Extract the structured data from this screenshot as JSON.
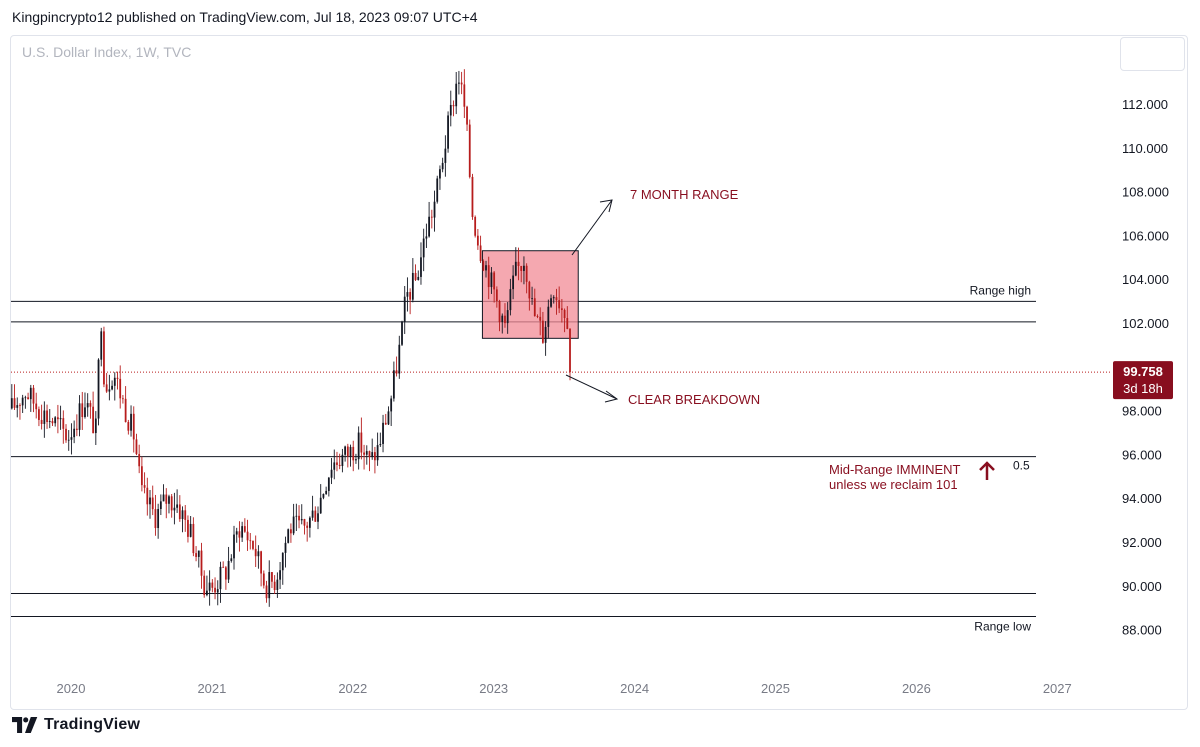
{
  "header": {
    "text": "Kingpincrypto12 published on TradingView.com, Jul 18, 2023 09:07 UTC+4"
  },
  "symbol": {
    "title": "U.S. Dollar Index, 1W, TVC"
  },
  "footer": {
    "brand": "TradingView",
    "logo_icon": "tradingview-logo-icon"
  },
  "colors": {
    "up": "#131722",
    "down": "#b71c1c",
    "range_box": "#f28b95",
    "last_price_bg": "#880e1f",
    "annotation": "#880e1f"
  },
  "chart_data": {
    "type": "candlestick",
    "title": "U.S. Dollar Index, 1W, TVC",
    "ylim": [
      86.5,
      114.0
    ],
    "y_ticks": [
      "112.000",
      "110.000",
      "108.000",
      "106.000",
      "104.000",
      "102.000",
      "98.000",
      "96.000",
      "94.000",
      "92.000",
      "90.000",
      "88.000"
    ],
    "y_tick_values": [
      112,
      110,
      108,
      106,
      104,
      102,
      98,
      96,
      94,
      92,
      90,
      88
    ],
    "xlim": [
      2019.57,
      2027.28
    ],
    "x_ticks": [
      "2020",
      "2021",
      "2022",
      "2023",
      "2024",
      "2025",
      "2026",
      "2027"
    ],
    "x_tick_values": [
      2020,
      2021,
      2022,
      2023,
      2024,
      2025,
      2026,
      2027
    ],
    "last_price": {
      "value": 99.758,
      "label": "99.758",
      "countdown": "3d 18h"
    },
    "start_date": 2019.58,
    "end_date": 2023.55,
    "price_path": [
      [
        2019.58,
        98.1
      ],
      [
        2019.68,
        98.9
      ],
      [
        2019.78,
        98.0
      ],
      [
        2019.9,
        97.4
      ],
      [
        2019.98,
        96.8
      ],
      [
        2020.1,
        98.5
      ],
      [
        2020.18,
        97.0
      ],
      [
        2020.21,
        102.8
      ],
      [
        2020.24,
        99.0
      ],
      [
        2020.3,
        99.8
      ],
      [
        2020.38,
        98.2
      ],
      [
        2020.45,
        96.8
      ],
      [
        2020.5,
        94.2
      ],
      [
        2020.6,
        93.2
      ],
      [
        2020.68,
        94.0
      ],
      [
        2020.75,
        93.8
      ],
      [
        2020.85,
        92.4
      ],
      [
        2020.95,
        90.0
      ],
      [
        2021.0,
        89.9
      ],
      [
        2021.1,
        90.7
      ],
      [
        2021.2,
        92.8
      ],
      [
        2021.3,
        91.8
      ],
      [
        2021.38,
        90.0
      ],
      [
        2021.45,
        90.3
      ],
      [
        2021.55,
        92.7
      ],
      [
        2021.65,
        92.6
      ],
      [
        2021.75,
        93.6
      ],
      [
        2021.85,
        95.6
      ],
      [
        2021.95,
        96.0
      ],
      [
        2022.05,
        96.5
      ],
      [
        2022.12,
        95.6
      ],
      [
        2022.18,
        96.3
      ],
      [
        2022.27,
        98.5
      ],
      [
        2022.33,
        100.8
      ],
      [
        2022.38,
        103.2
      ],
      [
        2022.45,
        104.0
      ],
      [
        2022.52,
        106.2
      ],
      [
        2022.58,
        107.5
      ],
      [
        2022.65,
        110.0
      ],
      [
        2022.72,
        112.5
      ],
      [
        2022.75,
        113.4
      ],
      [
        2022.8,
        111.5
      ],
      [
        2022.85,
        107.0
      ],
      [
        2022.9,
        105.5
      ],
      [
        2022.95,
        104.5
      ],
      [
        2023.0,
        103.5
      ],
      [
        2023.08,
        101.8
      ],
      [
        2023.15,
        104.2
      ],
      [
        2023.22,
        105.0
      ],
      [
        2023.28,
        102.5
      ],
      [
        2023.35,
        101.5
      ],
      [
        2023.42,
        103.8
      ],
      [
        2023.48,
        102.8
      ],
      [
        2023.52,
        102.5
      ],
      [
        2023.55,
        99.76
      ]
    ],
    "hlines": [
      {
        "value": 102.99,
        "label": "Range high"
      },
      {
        "value": 102.05,
        "label": ""
      },
      {
        "value": 95.9,
        "label": "0.5"
      },
      {
        "value": 89.65,
        "label": ""
      },
      {
        "value": 88.6,
        "label": "Range low"
      }
    ],
    "range_box": {
      "x0": 2022.92,
      "x1": 2023.6,
      "y0": 101.3,
      "y1": 105.3
    },
    "annotations": [
      {
        "id": "seven-month",
        "text": "7 MONTH RANGE"
      },
      {
        "id": "breakdown",
        "text": "CLEAR BREAKDOWN"
      },
      {
        "id": "mid-range-1",
        "text": "Mid-Range IMMINENT"
      },
      {
        "id": "mid-range-2",
        "text": "unless we reclaim 101"
      }
    ]
  }
}
